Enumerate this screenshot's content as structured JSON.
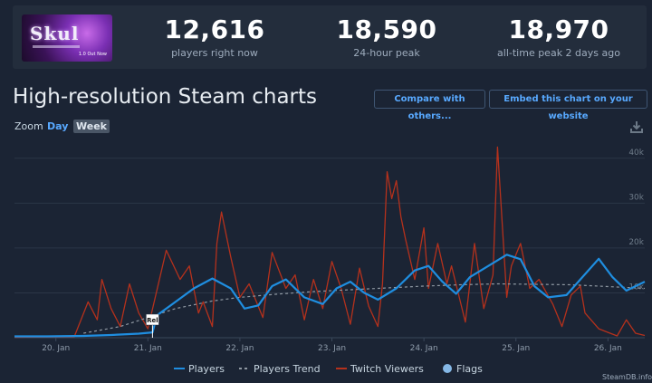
{
  "app": {
    "logo_text": "Skul",
    "logo_tag": "1.0 Out Now"
  },
  "stats": [
    {
      "value": "12,616",
      "label": "players right now"
    },
    {
      "value": "18,590",
      "label": "24-hour peak"
    },
    {
      "value": "18,970",
      "label": "all-time peak 2 days ago"
    }
  ],
  "page": {
    "title": "High-resolution Steam charts"
  },
  "buttons": {
    "compare": "Compare with others...",
    "embed": "Embed this chart on your website"
  },
  "zoom": {
    "label": "Zoom",
    "day": "Day",
    "week": "Week",
    "active": "Week"
  },
  "watermark": "SteamDB.info",
  "colors": {
    "players": "#1f8ee0",
    "trend": "#8f98a2",
    "twitch": "#b5311c",
    "flags": "#85b8e6",
    "grid": "#2b3647",
    "active_zoom": "#58a9ff"
  },
  "icons": {
    "download": "download-icon"
  },
  "chart_data": {
    "type": "line",
    "x_unit": "day (January)",
    "xlim": [
      19.55,
      26.4
    ],
    "ylim": [
      0,
      45000
    ],
    "y_ticks": [
      10000,
      20000,
      30000,
      40000
    ],
    "y_tick_labels": [
      "10k",
      "20k",
      "30k",
      "40k"
    ],
    "x_ticks": [
      20,
      21,
      22,
      23,
      24,
      25,
      26
    ],
    "x_tick_labels": [
      "20. Jan",
      "21. Jan",
      "22. Jan",
      "23. Jan",
      "24. Jan",
      "25. Jan",
      "26. Jan"
    ],
    "grid": true,
    "legend_position": "bottom",
    "legend": [
      "Players",
      "Players Trend",
      "Twitch Viewers",
      "Flags"
    ],
    "flags": [
      {
        "x": 21.05,
        "label": "Rel"
      }
    ],
    "series": [
      {
        "name": "Players",
        "color": "#1f8ee0",
        "x": [
          19.55,
          19.9,
          20.3,
          20.6,
          20.9,
          21.05,
          21.1,
          21.3,
          21.5,
          21.7,
          21.9,
          22.05,
          22.2,
          22.35,
          22.5,
          22.7,
          22.9,
          23.05,
          23.2,
          23.35,
          23.5,
          23.7,
          23.9,
          24.05,
          24.2,
          24.35,
          24.5,
          24.7,
          24.9,
          25.05,
          25.2,
          25.35,
          25.55,
          25.7,
          25.9,
          26.05,
          26.2,
          26.4
        ],
        "y": [
          300,
          300,
          400,
          600,
          900,
          1200,
          5000,
          8000,
          11000,
          13200,
          11000,
          6500,
          7200,
          11500,
          13000,
          9000,
          7500,
          11000,
          12500,
          10000,
          8500,
          11000,
          15000,
          16000,
          12500,
          9800,
          13500,
          16000,
          18500,
          17500,
          11500,
          9000,
          9500,
          13000,
          17600,
          13500,
          10500,
          12500
        ]
      },
      {
        "name": "Players Trend",
        "color": "#8f98a2",
        "x": [
          20.3,
          20.7,
          21.0,
          21.3,
          21.7,
          22.0,
          22.4,
          22.8,
          23.2,
          23.6,
          24.0,
          24.4,
          24.8,
          25.2,
          25.6,
          26.0,
          26.4
        ],
        "y": [
          1000,
          2500,
          4500,
          6500,
          8200,
          9000,
          9700,
          10300,
          10700,
          11100,
          11500,
          11800,
          12000,
          11900,
          11800,
          11400,
          11000
        ]
      },
      {
        "name": "Twitch Viewers",
        "color": "#b5311c",
        "x": [
          19.55,
          20.2,
          20.35,
          20.45,
          20.5,
          20.6,
          20.7,
          20.8,
          20.9,
          21.0,
          21.2,
          21.35,
          21.45,
          21.55,
          21.6,
          21.7,
          21.75,
          21.8,
          21.9,
          22.0,
          22.1,
          22.25,
          22.35,
          22.5,
          22.6,
          22.7,
          22.8,
          22.9,
          23.0,
          23.1,
          23.2,
          23.3,
          23.4,
          23.5,
          23.55,
          23.6,
          23.65,
          23.7,
          23.75,
          23.8,
          23.9,
          24.0,
          24.05,
          24.15,
          24.25,
          24.3,
          24.45,
          24.55,
          24.65,
          24.75,
          24.8,
          24.9,
          24.95,
          25.05,
          25.15,
          25.25,
          25.4,
          25.5,
          25.6,
          25.7,
          25.75,
          25.9,
          26.0,
          26.1,
          26.2,
          26.3,
          26.4
        ],
        "y": [
          100,
          200,
          8000,
          4000,
          13000,
          6500,
          2500,
          12000,
          5500,
          2000,
          19500,
          13000,
          16000,
          5500,
          8000,
          2500,
          21000,
          28000,
          18000,
          9000,
          12000,
          4500,
          19000,
          11000,
          14000,
          4000,
          13000,
          6500,
          17000,
          11000,
          3000,
          15500,
          7000,
          2500,
          12000,
          37000,
          31000,
          35000,
          27000,
          22000,
          13000,
          24500,
          11000,
          21000,
          12000,
          16000,
          3500,
          21000,
          6500,
          14000,
          42500,
          9000,
          16000,
          21000,
          11000,
          13000,
          7500,
          2500,
          9500,
          11500,
          5500,
          2000,
          1200,
          400,
          4000,
          1000,
          500
        ]
      }
    ]
  }
}
